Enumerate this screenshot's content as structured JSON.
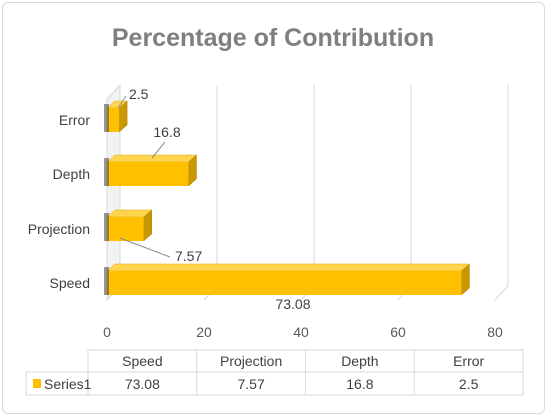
{
  "chart_data": {
    "type": "bar",
    "orientation": "horizontal",
    "title": "Percentage of Contribution",
    "categories": [
      "Speed",
      "Projection",
      "Depth",
      "Error"
    ],
    "series": [
      {
        "name": "Series1",
        "values": [
          73.08,
          7.57,
          16.8,
          2.5
        ]
      }
    ],
    "xlim": [
      0,
      80
    ],
    "xticks": [
      0,
      20,
      40,
      60,
      80
    ],
    "grid": true,
    "data_table": true,
    "colors": {
      "bar": "#FFC000",
      "bar_top": "#FFD54F",
      "bar_side": "#C99700",
      "grid": "#d9d9d9"
    }
  }
}
